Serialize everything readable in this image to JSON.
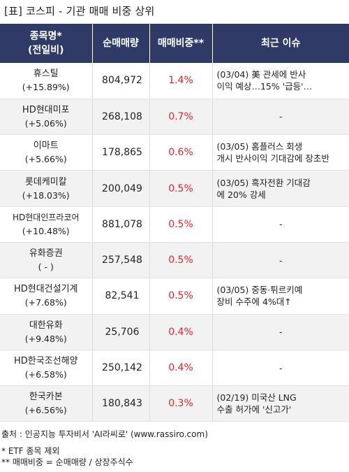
{
  "title": "[표] 코스피 - 기관 매매 비중 상위",
  "headers": {
    "name_line1": "종목명*",
    "name_line2": "(전일비)",
    "volume": "순매매량",
    "ratio": "매매비중**",
    "issue": "최근 이슈"
  },
  "rows": [
    {
      "name": "휴스틸",
      "change": "(+15.89%)",
      "volume": "804,972",
      "ratio": "1.4%",
      "issue1": "(03/04) 美 관세에 반사",
      "issue2": "이익 예상…15% '급등'…"
    },
    {
      "name": "HD현대미포",
      "change": "(+5.06%)",
      "volume": "268,108",
      "ratio": "0.7%",
      "issue1": "-",
      "issue2": ""
    },
    {
      "name": "이마트",
      "change": "(+5.66%)",
      "volume": "178,865",
      "ratio": "0.6%",
      "issue1": "(03/05) 홈플러스 회생",
      "issue2": "개시 반사이익 기대감에 장초반"
    },
    {
      "name": "롯데케미칼",
      "change": "(+18.03%)",
      "volume": "200,049",
      "ratio": "0.5%",
      "issue1": "(03/05) 흑자전환 기대감",
      "issue2": "에 20% 강세"
    },
    {
      "name": "HD현대인프라코어",
      "change": "(+10.48%)",
      "volume": "881,078",
      "ratio": "0.5%",
      "issue1": "-",
      "issue2": ""
    },
    {
      "name": "유화증권",
      "change": "( - )",
      "volume": "257,548",
      "ratio": "0.5%",
      "issue1": "-",
      "issue2": ""
    },
    {
      "name": "HD현대건설기계",
      "change": "(+7.68%)",
      "volume": "82,541",
      "ratio": "0.5%",
      "issue1": "(03/05) 중동·튀르키예",
      "issue2": "장비 수주에 4%대↑"
    },
    {
      "name": "대한유화",
      "change": "(+9.48%)",
      "volume": "25,706",
      "ratio": "0.4%",
      "issue1": "-",
      "issue2": ""
    },
    {
      "name": "HD한국조선해양",
      "change": "(+6.58%)",
      "volume": "250,142",
      "ratio": "0.4%",
      "issue1": "-",
      "issue2": ""
    },
    {
      "name": "한국카본",
      "change": "(+6.56%)",
      "volume": "180,843",
      "ratio": "0.3%",
      "issue1": "(02/19) 미국산 LNG",
      "issue2": "수출 허가에 '신고가'"
    }
  ],
  "footer": {
    "source": "출처 : 인공지능 투자비서 'AI라씨로' (www.rassiro.com)",
    "note1": "* ETF 종목 제외",
    "note2": "** 매매비중 = 순매매량 / 상장주식수"
  },
  "colors": {
    "header_bg": "#2f3b66",
    "ratio_text": "#e0262e",
    "stripe": "#f2f2f2"
  }
}
